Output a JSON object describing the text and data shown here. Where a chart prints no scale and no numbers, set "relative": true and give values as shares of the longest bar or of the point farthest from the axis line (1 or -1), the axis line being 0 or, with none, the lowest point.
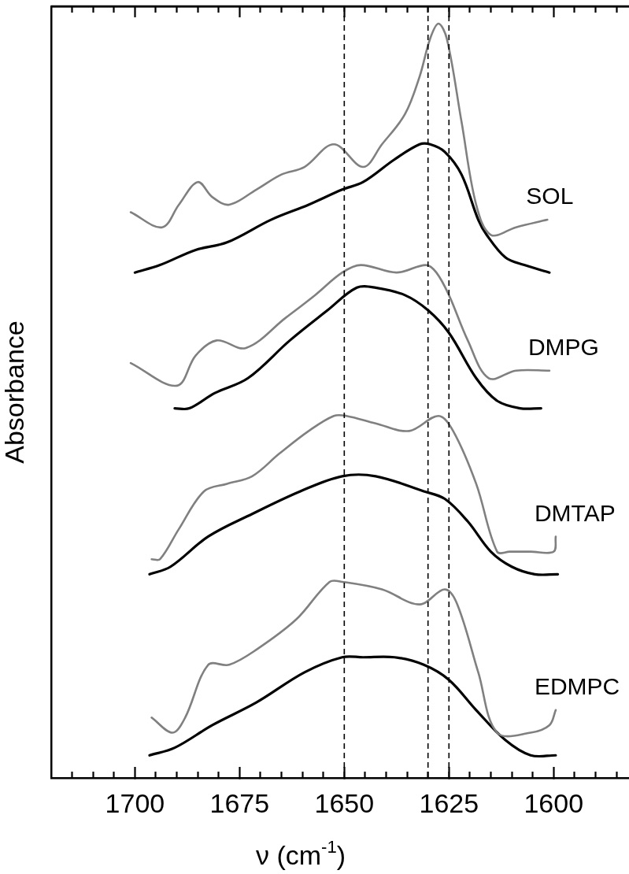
{
  "chart_data": {
    "type": "line",
    "relative": true,
    "xlabel": "ν (cm$^{-1}$)",
    "ylabel": "Absorbance",
    "xlim": [
      1720,
      1582
    ],
    "xticks": [
      {
        "value": 1715,
        "label": null
      },
      {
        "value": 1710,
        "label": null
      },
      {
        "value": 1705,
        "label": null
      },
      1700,
      {
        "value": 1695,
        "label": null
      },
      {
        "value": 1690,
        "label": null
      },
      {
        "value": 1685,
        "label": null
      },
      {
        "value": 1680,
        "label": null
      },
      1675,
      {
        "value": 1670,
        "label": null
      },
      {
        "value": 1665,
        "label": null
      },
      {
        "value": 1660,
        "label": null
      },
      {
        "value": 1655,
        "label": null
      },
      1650,
      {
        "value": 1645,
        "label": null
      },
      {
        "value": 1640,
        "label": null
      },
      {
        "value": 1635,
        "label": null
      },
      {
        "value": 1630,
        "label": null
      },
      1625,
      {
        "value": 1620,
        "label": null
      },
      {
        "value": 1615,
        "label": null
      },
      {
        "value": 1610,
        "label": null
      },
      {
        "value": 1605,
        "label": null
      },
      1600,
      {
        "value": 1595,
        "label": null
      },
      {
        "value": 1590,
        "label": null
      },
      {
        "value": 1585,
        "label": null
      }
    ],
    "grid": false,
    "legend": false,
    "marker": "none",
    "line_style": "solid",
    "ref_lines": [
      {
        "axis": "x",
        "value": 1650,
        "line_style": "dashed",
        "color": "#000000"
      },
      {
        "axis": "x",
        "value": 1630,
        "line_style": "dashed",
        "color": "#000000"
      },
      {
        "axis": "x",
        "value": 1625,
        "line_style": "dashed",
        "color": "#000000"
      }
    ],
    "series": [
      {
        "name": "SOL",
        "color": "#808080",
        "x": [
          1701,
          1693.5,
          1689.5,
          1685,
          1681.5,
          1677.5,
          1671,
          1665,
          1659.5,
          1652.5,
          1645.5,
          1641,
          1635.5,
          1632,
          1629.5,
          1627.5,
          1625.5,
          1622,
          1618.5,
          1615,
          1609,
          1601.5
        ],
        "values": [
          0.75,
          0.73,
          0.76,
          0.79,
          0.77,
          0.76,
          0.78,
          0.8,
          0.81,
          0.84,
          0.81,
          0.84,
          0.88,
          0.93,
          0.98,
          1.0,
          0.98,
          0.87,
          0.76,
          0.72,
          0.73,
          0.74
        ]
      },
      {
        "color": "#000000",
        "x": [
          1700,
          1694,
          1685.5,
          1678,
          1667.5,
          1658.5,
          1650.5,
          1645.5,
          1638,
          1632,
          1629.5,
          1626,
          1622,
          1618,
          1616,
          1611.5,
          1607,
          1601
        ],
        "values": [
          0.67,
          0.68,
          0.7,
          0.71,
          0.74,
          0.76,
          0.78,
          0.79,
          0.82,
          0.84,
          0.84,
          0.83,
          0.8,
          0.74,
          0.72,
          0.69,
          0.68,
          0.67
        ]
      },
      {
        "name": "DMPG",
        "color": "#808080",
        "x": [
          1701,
          1690,
          1685.5,
          1680.5,
          1673.5,
          1664,
          1657,
          1650.5,
          1646,
          1637.5,
          1630.5,
          1628,
          1625,
          1620.5,
          1615.5,
          1609,
          1601
        ],
        "values": [
          0.55,
          0.52,
          0.56,
          0.58,
          0.57,
          0.61,
          0.64,
          0.67,
          0.68,
          0.67,
          0.68,
          0.67,
          0.64,
          0.58,
          0.53,
          0.54,
          0.54
        ]
      },
      {
        "color": "#000000",
        "x": [
          1690.5,
          1687,
          1681,
          1673,
          1663,
          1654,
          1647,
          1642.5,
          1635.5,
          1630,
          1625,
          1618.5,
          1613.5,
          1608,
          1603
        ],
        "values": [
          0.49,
          0.49,
          0.51,
          0.53,
          0.58,
          0.62,
          0.65,
          0.65,
          0.64,
          0.62,
          0.59,
          0.53,
          0.5,
          0.49,
          0.49
        ]
      },
      {
        "name": "DMTAP",
        "color": "#808080",
        "x": [
          1696,
          1694,
          1689.5,
          1683.5,
          1678,
          1672,
          1665.5,
          1658.5,
          1652.5,
          1649.5,
          1642.5,
          1634.5,
          1627.5,
          1624,
          1618.5,
          1613.5,
          1610.5,
          1605.5,
          1600,
          1599.5
        ],
        "values": [
          0.29,
          0.29,
          0.33,
          0.38,
          0.39,
          0.4,
          0.43,
          0.46,
          0.48,
          0.48,
          0.47,
          0.46,
          0.48,
          0.46,
          0.39,
          0.3,
          0.3,
          0.3,
          0.3,
          0.32
        ]
      },
      {
        "color": "#000000",
        "x": [
          1696.5,
          1691.5,
          1682.5,
          1672,
          1660.5,
          1650.5,
          1642.5,
          1631,
          1626,
          1620.5,
          1615,
          1610,
          1604.5,
          1599
        ],
        "values": [
          0.27,
          0.28,
          0.32,
          0.35,
          0.38,
          0.4,
          0.4,
          0.38,
          0.37,
          0.34,
          0.3,
          0.28,
          0.27,
          0.27
        ]
      },
      {
        "name": "EDMPC",
        "color": "#808080",
        "x": [
          1696,
          1691,
          1688,
          1682.5,
          1677.5,
          1671,
          1661.5,
          1653.5,
          1650.5,
          1641,
          1632,
          1626,
          1623,
          1618,
          1613.5,
          1605.5,
          1601,
          1599.5
        ],
        "values": [
          0.08,
          0.06,
          0.08,
          0.15,
          0.15,
          0.17,
          0.21,
          0.26,
          0.26,
          0.25,
          0.23,
          0.25,
          0.23,
          0.14,
          0.06,
          0.06,
          0.07,
          0.09
        ]
      },
      {
        "color": "#000000",
        "x": [
          1696.5,
          1690.5,
          1681.5,
          1671,
          1659.5,
          1650.5,
          1645.5,
          1638,
          1631,
          1625,
          1618.5,
          1611.5,
          1605.5,
          1599.5
        ],
        "values": [
          0.03,
          0.04,
          0.07,
          0.1,
          0.14,
          0.16,
          0.16,
          0.16,
          0.15,
          0.13,
          0.09,
          0.05,
          0.03,
          0.03
        ]
      }
    ]
  }
}
